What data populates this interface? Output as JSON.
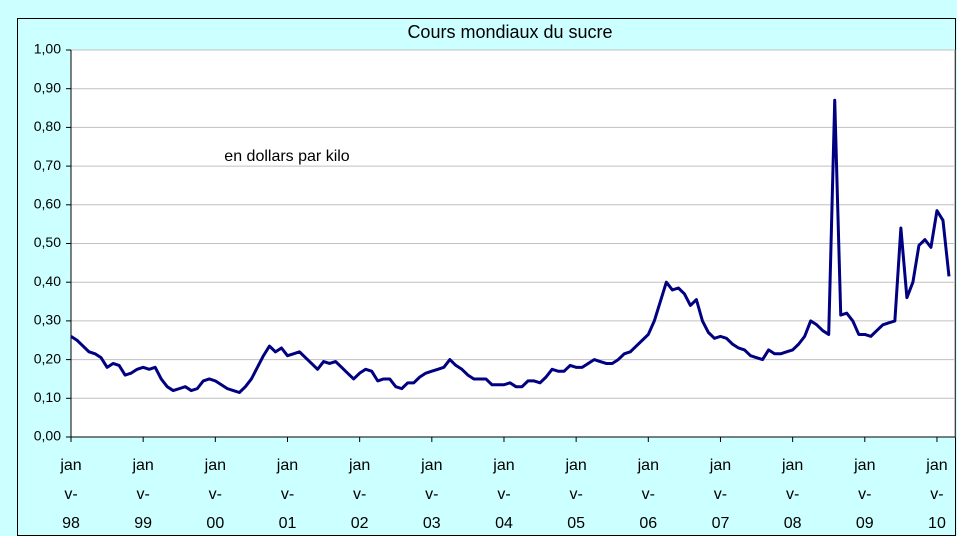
{
  "chart_data": {
    "type": "line",
    "title": "Cours mondiaux du sucre",
    "annotation": "en dollars par kilo",
    "xlim": [
      0,
      147
    ],
    "xticks": [
      {
        "value": 0,
        "label": "janv-98"
      },
      {
        "value": 12,
        "label": "janv-99"
      },
      {
        "value": 24,
        "label": "janv-00"
      },
      {
        "value": 36,
        "label": "janv-01"
      },
      {
        "value": 48,
        "label": "janv-02"
      },
      {
        "value": 60,
        "label": "janv-03"
      },
      {
        "value": 72,
        "label": "janv-04"
      },
      {
        "value": 84,
        "label": "janv-05"
      },
      {
        "value": 96,
        "label": "janv-06"
      },
      {
        "value": 108,
        "label": "janv-07"
      },
      {
        "value": 120,
        "label": "janv-08"
      },
      {
        "value": 132,
        "label": "janv-09"
      },
      {
        "value": 144,
        "label": "janv-10"
      }
    ],
    "ylim": [
      0,
      1
    ],
    "yticks": [
      {
        "value": 0,
        "label": "0,00"
      },
      {
        "value": 0.1,
        "label": "0,10"
      },
      {
        "value": 0.2,
        "label": "0,20"
      },
      {
        "value": 0.3,
        "label": "0,30"
      },
      {
        "value": 0.4,
        "label": "0,40"
      },
      {
        "value": 0.5,
        "label": "0,50"
      },
      {
        "value": 0.6,
        "label": "0,60"
      },
      {
        "value": 0.7,
        "label": "0,70"
      },
      {
        "value": 0.8,
        "label": "0,80"
      },
      {
        "value": 0.9,
        "label": "0,90"
      },
      {
        "value": 1,
        "label": "1,00"
      }
    ],
    "grid": true,
    "color": "#000080",
    "values": [
      0.26,
      0.25,
      0.235,
      0.22,
      0.215,
      0.205,
      0.18,
      0.19,
      0.185,
      0.16,
      0.165,
      0.175,
      0.18,
      0.175,
      0.18,
      0.15,
      0.13,
      0.12,
      0.125,
      0.13,
      0.12,
      0.125,
      0.145,
      0.15,
      0.145,
      0.135,
      0.125,
      0.12,
      0.115,
      0.13,
      0.15,
      0.18,
      0.21,
      0.235,
      0.22,
      0.23,
      0.21,
      0.215,
      0.22,
      0.205,
      0.19,
      0.175,
      0.195,
      0.19,
      0.195,
      0.18,
      0.165,
      0.15,
      0.165,
      0.175,
      0.17,
      0.145,
      0.15,
      0.15,
      0.13,
      0.125,
      0.14,
      0.14,
      0.155,
      0.165,
      0.17,
      0.175,
      0.18,
      0.2,
      0.185,
      0.175,
      0.16,
      0.15,
      0.15,
      0.15,
      0.135,
      0.135,
      0.135,
      0.14,
      0.13,
      0.13,
      0.145,
      0.145,
      0.14,
      0.155,
      0.175,
      0.17,
      0.17,
      0.185,
      0.18,
      0.18,
      0.19,
      0.2,
      0.195,
      0.19,
      0.19,
      0.2,
      0.215,
      0.22,
      0.235,
      0.25,
      0.265,
      0.3,
      0.35,
      0.4,
      0.38,
      0.385,
      0.37,
      0.34,
      0.355,
      0.3,
      0.27,
      0.255,
      0.26,
      0.255,
      0.24,
      0.23,
      0.225,
      0.21,
      0.205,
      0.2,
      0.225,
      0.215,
      0.215,
      0.22,
      0.225,
      0.24,
      0.26,
      0.3,
      0.29,
      0.275,
      0.265,
      0.87,
      0.315,
      0.32,
      0.3,
      0.265,
      0.265,
      0.26,
      0.275,
      0.29,
      0.295,
      0.3,
      0.54,
      0.36,
      0.4,
      0.495,
      0.51,
      0.49,
      0.585,
      0.56,
      0.415
    ]
  }
}
